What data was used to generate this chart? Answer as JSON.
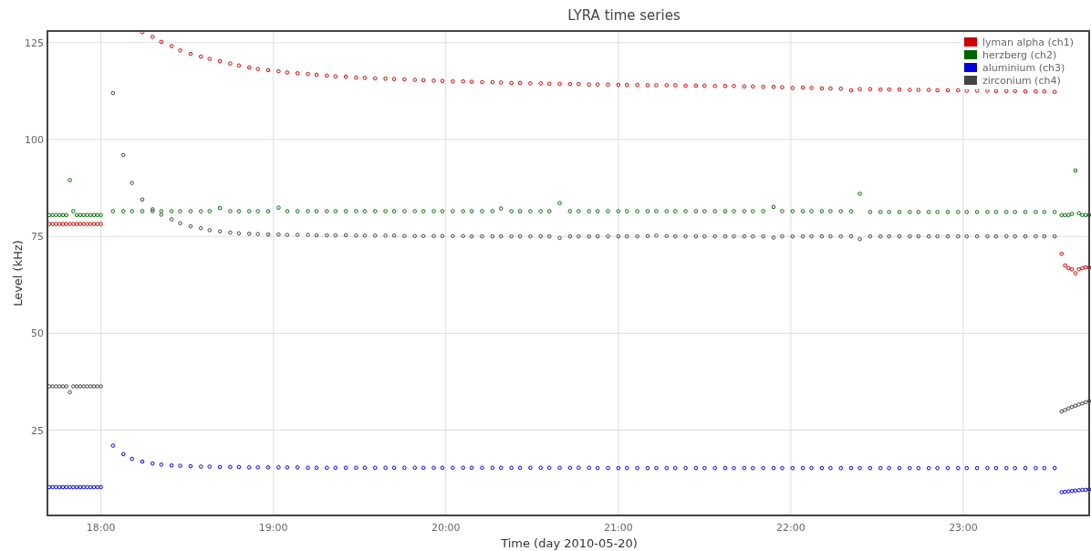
{
  "chart_data": {
    "type": "scatter",
    "title": "LYRA time series",
    "xlabel": "Time (day 2010-05-20)",
    "ylabel": "Level (kHz)",
    "xlim": [
      17.69,
      23.73
    ],
    "ylim": [
      3,
      128
    ],
    "xticks": [
      {
        "value": 18,
        "label": "18:00"
      },
      {
        "value": 19,
        "label": "19:00"
      },
      {
        "value": 20,
        "label": "20:00"
      },
      {
        "value": 21,
        "label": "21:00"
      },
      {
        "value": 22,
        "label": "22:00"
      },
      {
        "value": 23,
        "label": "23:00"
      }
    ],
    "yticks": [
      25,
      50,
      75,
      100,
      125
    ],
    "grid": true,
    "legend": "top right",
    "marker": "circle",
    "x": [
      17.7,
      17.72,
      17.74,
      17.76,
      17.78,
      17.8,
      17.82,
      17.84,
      17.86,
      17.88,
      17.9,
      17.92,
      17.94,
      17.96,
      17.98,
      18.0,
      18.07,
      18.13,
      18.18,
      18.24,
      18.3,
      18.35,
      18.41,
      18.46,
      18.52,
      18.58,
      18.63,
      18.69,
      18.75,
      18.8,
      18.86,
      18.91,
      18.97,
      19.03,
      19.08,
      19.14,
      19.2,
      19.25,
      19.31,
      19.36,
      19.42,
      19.48,
      19.53,
      19.59,
      19.65,
      19.7,
      19.76,
      19.82,
      19.87,
      19.93,
      19.98,
      20.04,
      20.1,
      20.15,
      20.21,
      20.27,
      20.32,
      20.38,
      20.43,
      20.49,
      20.55,
      20.6,
      20.66,
      20.72,
      20.77,
      20.83,
      20.88,
      20.94,
      21.0,
      21.05,
      21.11,
      21.17,
      21.22,
      21.28,
      21.33,
      21.39,
      21.45,
      21.5,
      21.56,
      21.62,
      21.67,
      21.73,
      21.78,
      21.84,
      21.9,
      21.95,
      22.01,
      22.07,
      22.12,
      22.18,
      22.23,
      22.29,
      22.35,
      22.4,
      22.46,
      22.52,
      22.57,
      22.63,
      22.69,
      22.74,
      22.8,
      22.85,
      22.91,
      22.97,
      23.02,
      23.08,
      23.14,
      23.19,
      23.25,
      23.3,
      23.36,
      23.42,
      23.47,
      23.53,
      23.57,
      23.59,
      23.61,
      23.63,
      23.65,
      23.67,
      23.69,
      23.71,
      23.73
    ],
    "series": [
      {
        "name": "lyman alpha (ch1)",
        "color": "#cc0000",
        "values": [
          78.2,
          78.2,
          78.2,
          78.2,
          78.2,
          78.2,
          78.2,
          78.2,
          78.2,
          78.2,
          78.2,
          78.2,
          78.2,
          78.2,
          78.2,
          78.2,
          null,
          null,
          null,
          127.7,
          126.5,
          125.2,
          124.1,
          123.0,
          122.1,
          121.4,
          120.8,
          120.2,
          119.6,
          119.1,
          118.6,
          118.2,
          117.9,
          117.6,
          117.3,
          117.1,
          116.9,
          116.7,
          116.5,
          116.3,
          116.2,
          116.0,
          115.9,
          115.8,
          115.7,
          115.6,
          115.5,
          115.4,
          115.3,
          115.2,
          115.1,
          115.0,
          115.0,
          114.9,
          114.8,
          114.8,
          114.7,
          114.6,
          114.6,
          114.5,
          114.5,
          114.4,
          114.4,
          114.3,
          114.3,
          114.2,
          114.2,
          114.2,
          114.1,
          114.1,
          114.1,
          114.0,
          114.0,
          114.0,
          114.0,
          113.9,
          113.9,
          113.9,
          113.8,
          113.8,
          113.8,
          113.7,
          113.7,
          113.6,
          113.6,
          113.5,
          113.3,
          113.4,
          113.3,
          113.2,
          113.2,
          113.1,
          112.7,
          113.0,
          113.0,
          112.9,
          112.9,
          112.9,
          112.8,
          112.8,
          112.8,
          112.7,
          112.7,
          112.7,
          112.6,
          112.6,
          112.6,
          112.5,
          112.5,
          112.5,
          112.4,
          112.4,
          112.4,
          112.3,
          70.5,
          67.5,
          66.8,
          66.5,
          65.5,
          66.5,
          66.8,
          67.0,
          67.0
        ]
      },
      {
        "name": "herzberg (ch2)",
        "color": "#006600",
        "values": [
          80.5,
          80.5,
          80.5,
          80.5,
          80.5,
          80.5,
          89.5,
          81.5,
          80.5,
          80.5,
          80.5,
          80.5,
          80.5,
          80.5,
          80.5,
          80.5,
          81.5,
          81.5,
          81.5,
          81.5,
          81.5,
          81.5,
          81.5,
          81.5,
          81.5,
          81.5,
          81.5,
          82.3,
          81.5,
          81.5,
          81.5,
          81.5,
          81.5,
          82.4,
          81.5,
          81.5,
          81.5,
          81.5,
          81.5,
          81.5,
          81.5,
          81.5,
          81.5,
          81.5,
          81.5,
          81.5,
          81.5,
          81.5,
          81.5,
          81.5,
          81.5,
          81.5,
          81.5,
          81.5,
          81.5,
          81.5,
          82.2,
          81.5,
          81.5,
          81.5,
          81.5,
          81.5,
          83.6,
          81.5,
          81.5,
          81.5,
          81.5,
          81.5,
          81.5,
          81.5,
          81.5,
          81.5,
          81.5,
          81.5,
          81.5,
          81.5,
          81.5,
          81.5,
          81.5,
          81.5,
          81.5,
          81.5,
          81.5,
          81.5,
          82.6,
          81.5,
          81.5,
          81.5,
          81.5,
          81.5,
          81.5,
          81.5,
          81.5,
          86.0,
          81.3,
          81.3,
          81.3,
          81.3,
          81.3,
          81.3,
          81.3,
          81.3,
          81.3,
          81.3,
          81.3,
          81.3,
          81.3,
          81.3,
          81.3,
          81.3,
          81.3,
          81.3,
          81.3,
          81.3,
          80.5,
          80.5,
          80.5,
          80.8,
          92.0,
          81.0,
          80.5,
          80.5,
          80.5
        ]
      },
      {
        "name": "aluminium (ch3)",
        "color": "#0000dd",
        "values": [
          10.3,
          10.3,
          10.3,
          10.3,
          10.3,
          10.3,
          10.3,
          10.3,
          10.3,
          10.3,
          10.3,
          10.3,
          10.3,
          10.3,
          10.3,
          10.3,
          21.0,
          18.8,
          17.6,
          16.9,
          16.4,
          16.1,
          15.9,
          15.8,
          15.7,
          15.6,
          15.6,
          15.5,
          15.5,
          15.5,
          15.4,
          15.4,
          15.4,
          15.4,
          15.4,
          15.4,
          15.3,
          15.3,
          15.3,
          15.3,
          15.3,
          15.3,
          15.3,
          15.3,
          15.3,
          15.3,
          15.3,
          15.3,
          15.3,
          15.3,
          15.3,
          15.3,
          15.3,
          15.3,
          15.3,
          15.3,
          15.3,
          15.3,
          15.3,
          15.3,
          15.3,
          15.3,
          15.3,
          15.3,
          15.3,
          15.3,
          15.2,
          15.2,
          15.2,
          15.2,
          15.2,
          15.2,
          15.2,
          15.2,
          15.2,
          15.2,
          15.2,
          15.2,
          15.2,
          15.2,
          15.2,
          15.2,
          15.2,
          15.2,
          15.2,
          15.2,
          15.2,
          15.2,
          15.2,
          15.2,
          15.2,
          15.2,
          15.2,
          15.2,
          15.2,
          15.2,
          15.2,
          15.2,
          15.2,
          15.2,
          15.2,
          15.2,
          15.2,
          15.2,
          15.2,
          15.2,
          15.2,
          15.2,
          15.2,
          15.2,
          15.2,
          15.2,
          15.2,
          15.2,
          9.0,
          9.1,
          9.2,
          9.3,
          9.4,
          9.5,
          9.6,
          9.6,
          9.7
        ]
      },
      {
        "name": "zirconium (ch4)",
        "color": "#444444",
        "values": [
          36.3,
          36.3,
          36.3,
          36.3,
          36.3,
          36.3,
          34.8,
          36.3,
          36.3,
          36.3,
          36.3,
          36.3,
          36.3,
          36.3,
          36.3,
          36.3,
          112.0,
          96.0,
          88.8,
          84.5,
          82.0,
          80.6,
          79.4,
          78.4,
          77.6,
          77.1,
          76.6,
          76.3,
          76.0,
          75.8,
          75.7,
          75.6,
          75.5,
          75.5,
          75.4,
          75.4,
          75.4,
          75.3,
          75.3,
          75.3,
          75.3,
          75.2,
          75.2,
          75.2,
          75.2,
          75.2,
          75.1,
          75.1,
          75.1,
          75.1,
          75.1,
          75.1,
          75.1,
          75.0,
          75.0,
          75.0,
          75.0,
          75.0,
          75.0,
          75.0,
          75.0,
          75.0,
          74.6,
          75.0,
          75.0,
          75.0,
          75.0,
          75.0,
          75.0,
          75.0,
          75.0,
          75.1,
          75.2,
          75.1,
          75.0,
          75.0,
          75.0,
          75.0,
          75.0,
          75.0,
          75.0,
          75.0,
          75.0,
          75.0,
          74.7,
          75.0,
          75.0,
          75.0,
          75.0,
          75.0,
          75.0,
          75.0,
          75.0,
          74.3,
          75.0,
          75.0,
          75.0,
          75.0,
          75.0,
          75.0,
          75.0,
          75.0,
          75.0,
          75.0,
          75.0,
          75.0,
          75.0,
          75.0,
          75.0,
          75.0,
          75.0,
          75.0,
          75.0,
          75.0,
          29.8,
          30.2,
          30.6,
          31.0,
          31.3,
          31.6,
          31.9,
          32.2,
          32.5
        ]
      }
    ]
  }
}
